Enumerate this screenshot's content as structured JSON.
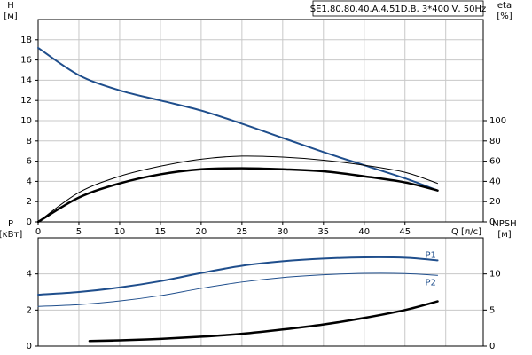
{
  "chart_data": [
    {
      "type": "line",
      "title": "SE1.80.80.40.A.4.51D.B, 3*400 V, 50Hz",
      "ylabel": [
        "H",
        "[м]"
      ],
      "y2label": [
        "eta",
        "[%]"
      ],
      "xlabel": "Q [л/с]",
      "xlim": [
        0,
        54.6
      ],
      "xticks": [
        0,
        5,
        10,
        15,
        20,
        25,
        30,
        35,
        40,
        45,
        50
      ],
      "xtick_labels": [
        0,
        5,
        10,
        15,
        20,
        25,
        30,
        35,
        40,
        45
      ],
      "ylim": [
        0,
        20
      ],
      "yticks": [
        0,
        2,
        4,
        6,
        8,
        10,
        12,
        14,
        16,
        18
      ],
      "y2lim": [
        0,
        200
      ],
      "y2ticks": [
        0,
        20,
        40,
        60,
        80,
        100
      ],
      "grid": true,
      "x": [
        0,
        5,
        10,
        15,
        20,
        25,
        30,
        35,
        40,
        45,
        49
      ],
      "series": [
        {
          "color": "#1f4e8c",
          "width": 2,
          "values": [
            17.2,
            14.5,
            13.0,
            12.0,
            11.0,
            9.7,
            8.3,
            6.9,
            5.6,
            4.3,
            3.1
          ]
        },
        {
          "color": "#000000",
          "width": 1,
          "axis": "y2",
          "values": [
            0,
            29,
            45,
            55,
            62,
            65,
            64,
            61,
            56,
            49,
            38
          ]
        },
        {
          "color": "#000000",
          "width": 2.5,
          "axis": "y2",
          "values": [
            0,
            24,
            38,
            47,
            52,
            53,
            52,
            50,
            45,
            39,
            31
          ]
        }
      ]
    },
    {
      "type": "line",
      "ylabel": [
        "P",
        "[кВт]"
      ],
      "y2label": [
        "NPSH",
        "[м]"
      ],
      "xlim": [
        0,
        54.6
      ],
      "xticks": [
        0,
        5,
        10,
        15,
        20,
        25,
        30,
        35,
        40,
        45,
        50
      ],
      "ylim": [
        0,
        6
      ],
      "yticks": [
        0,
        2,
        4
      ],
      "y2lim": [
        0,
        15
      ],
      "y2ticks": [
        0,
        5,
        10
      ],
      "grid": true,
      "x": [
        0,
        5,
        10,
        15,
        20,
        25,
        30,
        35,
        40,
        45,
        49
      ],
      "series": [
        {
          "name": "P1",
          "color": "#1f4e8c",
          "width": 2,
          "values": [
            2.85,
            3.0,
            3.25,
            3.6,
            4.05,
            4.45,
            4.7,
            4.85,
            4.92,
            4.9,
            4.75
          ]
        },
        {
          "name": "P2",
          "color": "#1f4e8c",
          "width": 1,
          "values": [
            2.2,
            2.3,
            2.5,
            2.8,
            3.2,
            3.55,
            3.8,
            3.95,
            4.03,
            4.02,
            3.92
          ]
        },
        {
          "color": "#000000",
          "width": 2.5,
          "axis": "y2",
          "x": [
            6.3,
            10,
            15,
            20,
            25,
            30,
            35,
            40,
            45,
            49
          ],
          "values": [
            0.7,
            0.8,
            1.0,
            1.3,
            1.7,
            2.3,
            3.0,
            3.9,
            5.0,
            6.2
          ]
        }
      ]
    }
  ]
}
